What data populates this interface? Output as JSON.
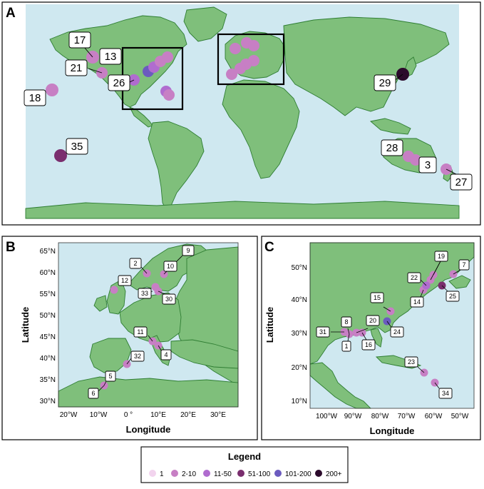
{
  "panels": {
    "a": "A",
    "b": "B",
    "c": "C"
  },
  "axis": {
    "latitude": "Latitude",
    "longitude": "Longitude"
  },
  "panel_b_ticks": {
    "lat": [
      "65°N",
      "60°N",
      "55°N",
      "50°N",
      "45°N",
      "40°N",
      "35°N",
      "30°N"
    ],
    "lon": [
      "20°W",
      "10°W",
      "0 °",
      "10°E",
      "20°E",
      "30°E"
    ]
  },
  "panel_c_ticks": {
    "lat": [
      "50°N",
      "40°N",
      "30°N",
      "20°N",
      "10°N"
    ],
    "lon": [
      "100°W",
      "90°W",
      "80°W",
      "70°W",
      "60°W",
      "50°W"
    ]
  },
  "legend": {
    "title": "Legend",
    "items": [
      {
        "label": "1",
        "color": "#f2d4ee"
      },
      {
        "label": "2-10",
        "color": "#c77fc4"
      },
      {
        "label": "11-50",
        "color": "#b06ccf"
      },
      {
        "label": "51-100",
        "color": "#7a2e6e"
      },
      {
        "label": "101-200",
        "color": "#6b5bbf"
      },
      {
        "label": "200+",
        "color": "#2b0a2b"
      }
    ]
  },
  "panel_a_labels": [
    "17",
    "13",
    "21",
    "26",
    "18",
    "35",
    "29",
    "28",
    "3",
    "27"
  ],
  "panel_b_labels": [
    "9",
    "2",
    "10",
    "12",
    "33",
    "30",
    "11",
    "4",
    "32",
    "5",
    "6"
  ],
  "panel_c_labels": [
    "19",
    "7",
    "22",
    "15",
    "14",
    "25",
    "8",
    "20",
    "31",
    "1",
    "16",
    "24",
    "23",
    "34"
  ]
}
